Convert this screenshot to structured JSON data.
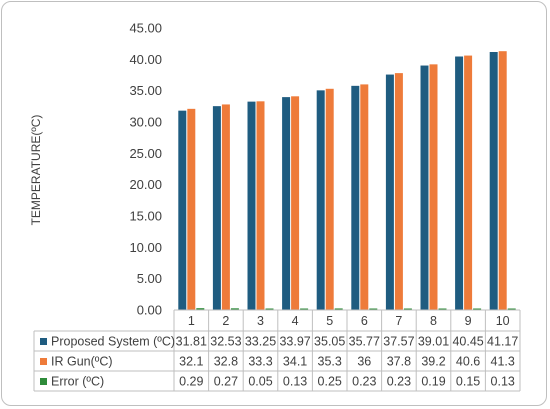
{
  "chart_data": {
    "type": "bar",
    "title": "",
    "xlabel": "",
    "ylabel": "TEMPERATURE(ºC)",
    "ylim": [
      0,
      45
    ],
    "y_ticks": [
      "0.00",
      "5.00",
      "10.00",
      "15.00",
      "20.00",
      "25.00",
      "30.00",
      "35.00",
      "40.00",
      "45.00"
    ],
    "grid": false,
    "legend": "data table below chart",
    "categories": [
      "1",
      "2",
      "3",
      "4",
      "5",
      "6",
      "7",
      "8",
      "9",
      "10"
    ],
    "series": [
      {
        "name": "Proposed System (ºC)",
        "color": "#1f5c80",
        "values": [
          31.81,
          32.53,
          33.25,
          33.97,
          35.05,
          35.77,
          37.57,
          39.01,
          40.45,
          41.17
        ],
        "labels": [
          "31.81",
          "32.53",
          "33.25",
          "33.97",
          "35.05",
          "35.77",
          "37.57",
          "39.01",
          "40.45",
          "41.17"
        ]
      },
      {
        "name": "IR Gun(ºC)",
        "color": "#ee7b3a",
        "values": [
          32.1,
          32.8,
          33.3,
          34.1,
          35.3,
          36,
          37.8,
          39.2,
          40.6,
          41.3
        ],
        "labels": [
          "32.1",
          "32.8",
          "33.3",
          "34.1",
          "35.3",
          "36",
          "37.8",
          "39.2",
          "40.6",
          "41.3"
        ]
      },
      {
        "name": "Error (ºC)",
        "color": "#2e8b3a",
        "values": [
          0.29,
          0.27,
          0.05,
          0.13,
          0.25,
          0.23,
          0.23,
          0.19,
          0.15,
          0.13
        ],
        "labels": [
          "0.29",
          "0.27",
          "0.05",
          "0.13",
          "0.25",
          "0.23",
          "0.23",
          "0.19",
          "0.15",
          "0.13"
        ]
      }
    ]
  }
}
